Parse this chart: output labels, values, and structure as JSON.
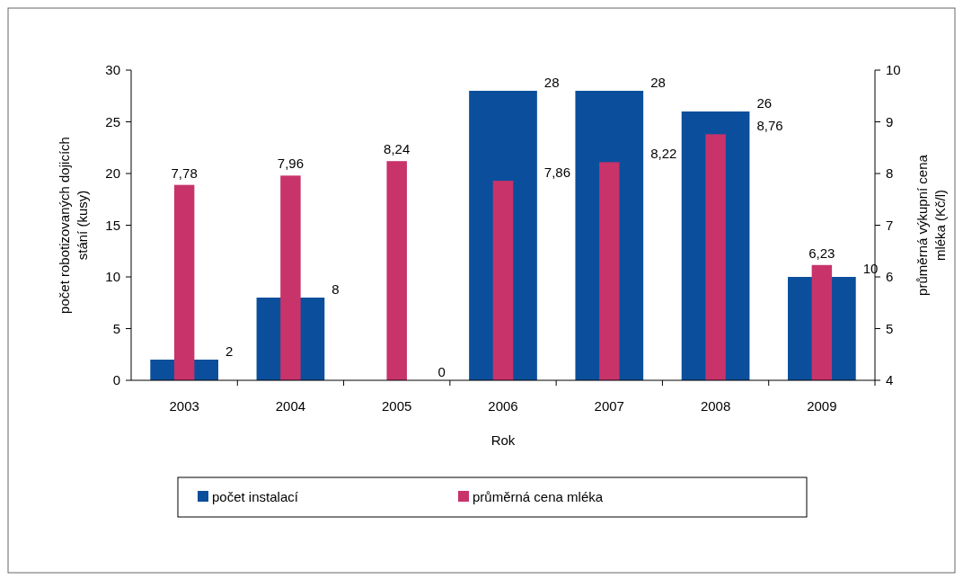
{
  "chart_data": {
    "type": "bar",
    "xlabel": "Rok",
    "ylabel": "počet robotizovaných dojicích stání (kusy)",
    "y2label": "průměrná výkupní cena mléka (Kč/l)",
    "categories": [
      "2003",
      "2004",
      "2005",
      "2006",
      "2007",
      "2008",
      "2009"
    ],
    "series": [
      {
        "name": "počet instalací",
        "color": "#0b4f9c",
        "values": [
          2,
          8,
          0,
          28,
          28,
          26,
          10
        ]
      },
      {
        "name": "průměrná cena mléka",
        "color": "#c8336a",
        "values": [
          7.78,
          7.96,
          8.24,
          7.86,
          8.22,
          8.76,
          6.23
        ],
        "axis": "y2"
      }
    ],
    "ylim": [
      0,
      30
    ],
    "yticks": [
      0,
      5,
      10,
      15,
      20,
      25,
      30
    ],
    "y2lim": [
      4,
      10
    ],
    "y2ticks": [
      4,
      5,
      6,
      7,
      8,
      9,
      10
    ],
    "value_labels": [
      [
        "2",
        "8",
        "0",
        "28",
        "28",
        "26",
        "10"
      ],
      [
        "7,78",
        "7,96",
        "8,24",
        "7,86",
        "8,22",
        "8,76",
        "6,23"
      ]
    ],
    "legend": "bottom",
    "grid": false
  }
}
